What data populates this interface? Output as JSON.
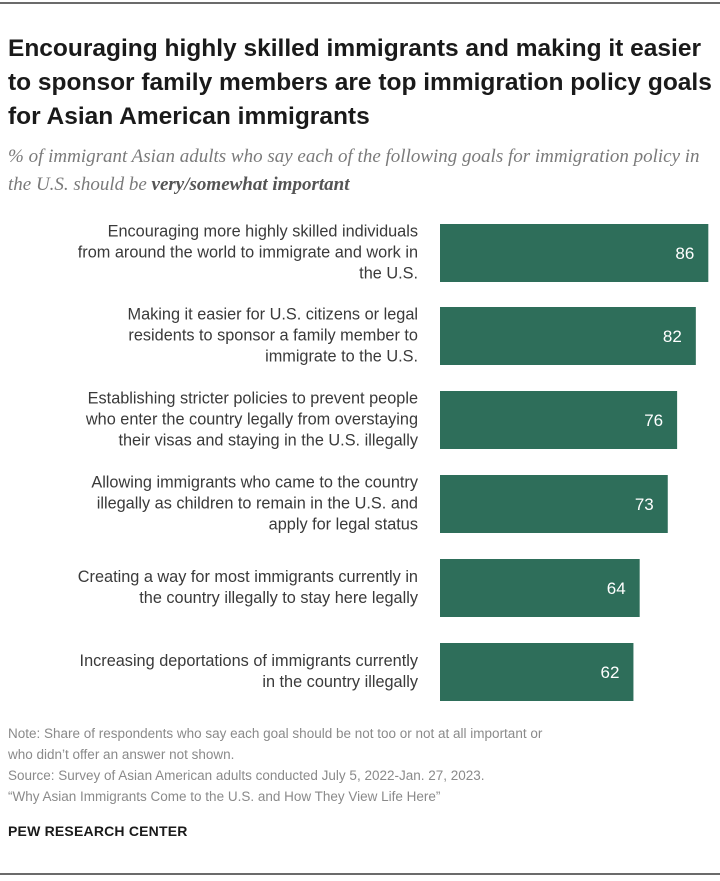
{
  "title": "Encouraging highly skilled immigrants and making it easier to sponsor family members are top immigration policy goals for Asian American immigrants",
  "subtitle": {
    "prefix": "% of immigrant Asian adults who say each of the following goals for immigration policy in the U.S. should be ",
    "emphasis": "very/somewhat important"
  },
  "chart_data": {
    "type": "bar",
    "orientation": "horizontal",
    "bar_color": "#2e6e5a",
    "categories": [
      [
        "Encouraging more highly skilled individuals",
        "from around the world to immigrate and work in",
        "the U.S."
      ],
      [
        "Making it easier for U.S. citizens or legal",
        "residents to sponsor a family member to",
        "immigrate to the U.S."
      ],
      [
        "Establishing stricter policies to prevent people",
        "who enter the country legally from overstaying",
        "their visas and staying in the U.S. illegally"
      ],
      [
        "Allowing immigrants who came to the country",
        "illegally as children to remain in the U.S. and",
        "apply for legal status"
      ],
      [
        "Creating a way for most immigrants currently in",
        "the country illegally to stay here legally"
      ],
      [
        "Increasing deportations of immigrants currently",
        "in the country illegally"
      ]
    ],
    "values": [
      86,
      82,
      76,
      73,
      64,
      62
    ],
    "xlim": [
      0,
      100
    ],
    "grid": false
  },
  "notes": {
    "note_line1": "Note: Share of respondents who say each goal should be not too or not at all important or",
    "note_line2": "who didn’t offer an answer not shown.",
    "source": "Source: Survey of Asian American adults conducted July 5, 2022-Jan. 27, 2023.",
    "report": "“Why Asian Immigrants Come to the U.S. and How They View Life Here”"
  },
  "credit": "PEW RESEARCH CENTER"
}
